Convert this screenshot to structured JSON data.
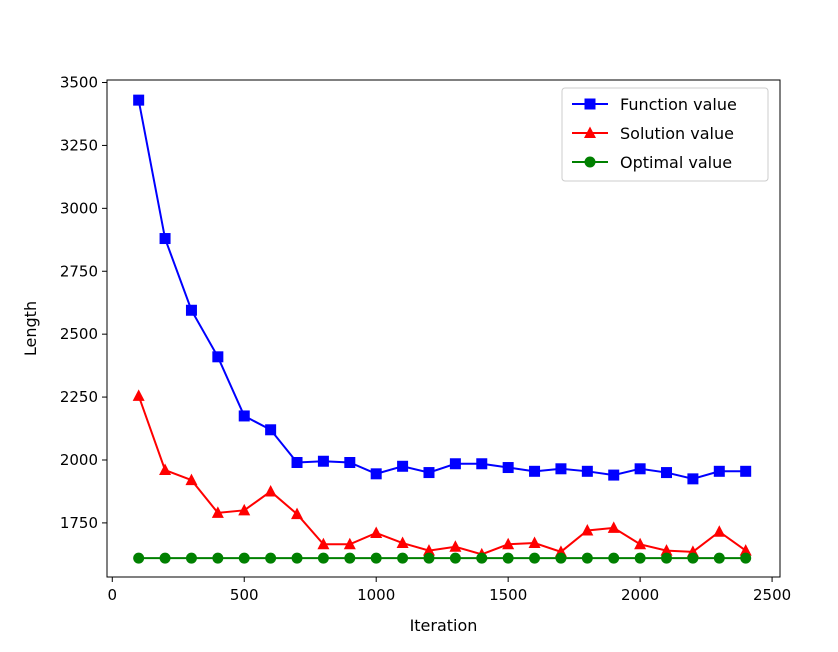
{
  "chart_data": {
    "type": "line",
    "title": "",
    "xlabel": "Iteration",
    "ylabel": "Length",
    "xlim": [
      -20,
      2530
    ],
    "ylim": [
      1535,
      3510
    ],
    "x_ticks": [
      0,
      500,
      1000,
      1500,
      2000,
      2500
    ],
    "y_ticks": [
      1750,
      2000,
      2250,
      2500,
      2750,
      3000,
      3250,
      3500
    ],
    "x_tick_labels": [
      "0",
      "500",
      "1000",
      "1500",
      "2000",
      "2500"
    ],
    "y_tick_labels": [
      "1750",
      "2000",
      "2250",
      "2500",
      "2750",
      "3000",
      "3250",
      "3500"
    ],
    "grid": false,
    "legend_position": "top-right",
    "x": [
      100,
      200,
      300,
      400,
      500,
      600,
      700,
      800,
      900,
      1000,
      1100,
      1200,
      1300,
      1400,
      1500,
      1600,
      1700,
      1800,
      1900,
      2000,
      2100,
      2200,
      2300,
      2400
    ],
    "series": [
      {
        "name": "Function value",
        "color": "#0000ff",
        "marker": "square",
        "values": [
          3430,
          2880,
          2595,
          2410,
          2175,
          2120,
          1990,
          1995,
          1990,
          1945,
          1975,
          1950,
          1985,
          1985,
          1970,
          1955,
          1965,
          1955,
          1940,
          1965,
          1950,
          1925,
          1955,
          1955
        ]
      },
      {
        "name": "Solution value",
        "color": "#ff0000",
        "marker": "triangle",
        "values": [
          2255,
          1960,
          1920,
          1790,
          1800,
          1875,
          1785,
          1665,
          1665,
          1710,
          1670,
          1640,
          1655,
          1625,
          1665,
          1670,
          1635,
          1720,
          1730,
          1665,
          1640,
          1635,
          1715,
          1640
        ]
      },
      {
        "name": "Optimal value",
        "color": "#008000",
        "marker": "circle",
        "values": [
          1610,
          1610,
          1610,
          1610,
          1610,
          1610,
          1610,
          1610,
          1610,
          1610,
          1610,
          1610,
          1610,
          1610,
          1610,
          1610,
          1610,
          1610,
          1610,
          1610,
          1610,
          1610,
          1610,
          1610
        ]
      }
    ]
  }
}
